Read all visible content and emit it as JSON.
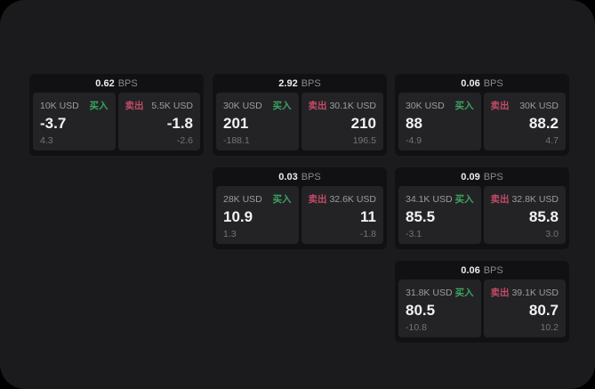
{
  "window": {
    "background": "#1b1b1d",
    "outer_background": "#000000"
  },
  "colors": {
    "buy_green": "#3aa560",
    "sell_red": "#c24b66",
    "price_white": "#f2f2f2",
    "label_gray": "#9c9c9c",
    "change_gray": "#747474"
  },
  "labels": {
    "buy": "买入",
    "sell": "卖出",
    "unit": "BPS"
  },
  "cards": [
    {
      "bps": "0.62",
      "buy": {
        "notional": "10K USD",
        "price": "-3.7",
        "change": "4.3"
      },
      "sell": {
        "notional": "5.5K USD",
        "price": "-1.8",
        "change": "-2.6"
      }
    },
    {
      "bps": "2.92",
      "buy": {
        "notional": "30K USD",
        "price": "201",
        "change": "-188.1"
      },
      "sell": {
        "notional": "30.1K USD",
        "price": "210",
        "change": "196.5"
      }
    },
    {
      "bps": "0.06",
      "buy": {
        "notional": "30K USD",
        "price": "88",
        "change": "-4.9"
      },
      "sell": {
        "notional": "30K USD",
        "price": "88.2",
        "change": "4.7"
      }
    },
    {
      "bps": "0.03",
      "buy": {
        "notional": "28K USD",
        "price": "10.9",
        "change": "1.3"
      },
      "sell": {
        "notional": "32.6K USD",
        "price": "11",
        "change": "-1.8"
      }
    },
    {
      "bps": "0.09",
      "buy": {
        "notional": "34.1K USD",
        "price": "85.5",
        "change": "-3.1"
      },
      "sell": {
        "notional": "32.8K USD",
        "price": "85.8",
        "change": "3.0"
      }
    },
    {
      "bps": "0.06",
      "buy": {
        "notional": "31.8K USD",
        "price": "80.5",
        "change": "-10.8"
      },
      "sell": {
        "notional": "39.1K USD",
        "price": "80.7",
        "change": "10.2"
      }
    }
  ]
}
